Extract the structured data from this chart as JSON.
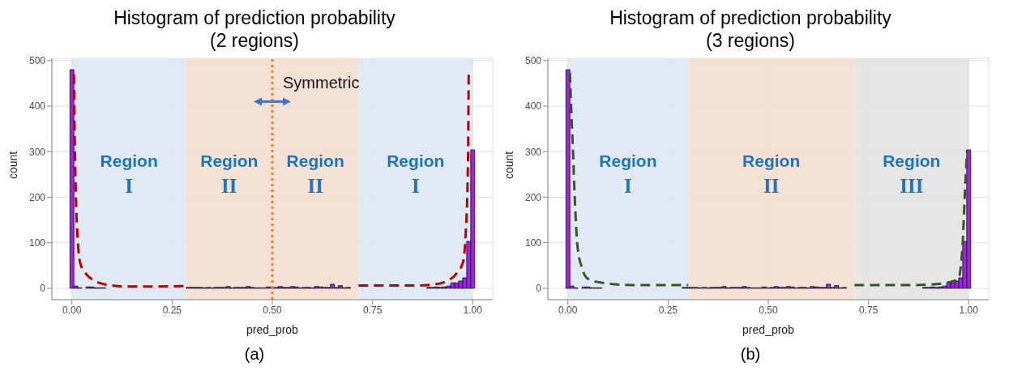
{
  "chart_data": [
    {
      "type": "histogram",
      "title": "Histogram of prediction probability\n(2 regions)",
      "xlabel": "pred_prob",
      "ylabel": "count",
      "bins": [
        -0.005,
        0.005,
        0.015,
        0.025,
        0.035,
        0.045,
        0.055,
        0.065,
        0.075,
        0.085,
        0.095,
        0.105,
        0.115,
        0.125,
        0.135,
        0.145,
        0.155,
        0.165,
        0.175,
        0.185,
        0.195,
        0.205,
        0.215,
        0.225,
        0.235,
        0.245,
        0.255,
        0.265,
        0.275,
        0.285,
        0.295,
        0.305,
        0.315,
        0.325,
        0.335,
        0.345,
        0.355,
        0.365,
        0.375,
        0.385,
        0.395,
        0.405,
        0.415,
        0.425,
        0.435,
        0.445,
        0.455,
        0.465,
        0.475,
        0.485,
        0.495,
        0.505,
        0.515,
        0.525,
        0.535,
        0.545,
        0.555,
        0.565,
        0.575,
        0.585,
        0.595,
        0.605,
        0.615,
        0.625,
        0.635,
        0.645,
        0.655,
        0.665,
        0.675,
        0.685,
        0.695,
        0.705,
        0.715,
        0.725,
        0.735,
        0.745,
        0.755,
        0.765,
        0.775,
        0.785,
        0.795,
        0.805,
        0.815,
        0.825,
        0.835,
        0.845,
        0.855,
        0.865,
        0.875,
        0.885,
        0.895,
        0.905,
        0.915,
        0.925,
        0.935,
        0.945,
        0.955,
        0.965,
        0.975,
        0.985,
        0.995,
        1.005
      ],
      "series": [
        {
          "color": "#a020f0",
          "values": [
            480,
            5,
            1,
            0,
            3,
            3,
            1,
            1,
            1,
            0,
            0,
            0,
            0,
            0,
            0,
            0,
            0,
            0,
            0,
            0,
            0,
            0,
            0,
            0,
            0,
            0,
            0,
            0,
            0,
            2,
            2,
            2,
            2,
            1,
            2,
            1,
            2,
            2,
            2,
            4,
            1,
            2,
            2,
            2,
            4,
            2,
            1,
            1,
            1,
            3,
            1,
            2,
            4,
            2,
            2,
            4,
            3,
            1,
            2,
            2,
            1,
            4,
            3,
            2,
            2,
            9,
            2,
            6,
            1,
            2,
            0,
            0,
            0,
            0,
            0,
            0,
            0,
            0,
            0,
            0,
            0,
            0,
            0,
            0,
            0,
            0,
            0,
            0,
            0,
            2,
            2,
            3,
            2,
            3,
            5,
            12,
            12,
            16,
            23,
            103,
            304
          ]
        },
        {
          "type": "line",
          "color": "#c00000",
          "line_style": "dashed",
          "x": [
            0.005,
            0.007,
            0.01,
            0.015,
            0.02,
            0.03,
            0.04,
            0.06,
            0.08,
            0.1,
            0.125,
            0.2,
            0.285,
            0.5,
            0.715,
            0.85,
            0.9,
            0.933,
            0.96,
            0.976,
            0.982,
            0.988,
            0.99
          ],
          "values": [
            470,
            330,
            200,
            100,
            58,
            38,
            27,
            15,
            9,
            6,
            4,
            4,
            5,
            null,
            6,
            6,
            8,
            15,
            33,
            58,
            112,
            264,
            471
          ]
        }
      ],
      "xlim": [
        -0.05,
        1.05
      ],
      "xticks": [
        {
          "value": 0,
          "label": "0.00"
        },
        {
          "value": 0.25,
          "label": "0.25"
        },
        {
          "value": 0.5,
          "label": "0.50"
        },
        {
          "value": 0.75,
          "label": "0.75"
        },
        {
          "value": 1,
          "label": "1.00"
        }
      ],
      "ylim": [
        -25,
        505
      ],
      "yticks": [
        0,
        100,
        200,
        300,
        400,
        500
      ],
      "grid": true,
      "bands": [
        {
          "axis": "x",
          "from": 0,
          "to": 0.285,
          "label": "Region I",
          "color": "#dce6f2"
        },
        {
          "axis": "x",
          "from": 0.285,
          "to": 0.5,
          "label": "Region II",
          "color": "#f2dcce"
        },
        {
          "axis": "x",
          "from": 0.5,
          "to": 0.715,
          "label": "Region II",
          "color": "#f2dcce"
        },
        {
          "axis": "x",
          "from": 0.715,
          "to": 1,
          "label": "Region I",
          "color": "#dce6f2"
        }
      ],
      "ref_lines": [
        {
          "axis": "x",
          "value": 0.5,
          "color": "#ed7d31",
          "line_style": "dotted"
        }
      ],
      "annotations": [
        {
          "text": "Symmetric",
          "x": 0.5,
          "y": 410
        },
        "(a)"
      ]
    },
    {
      "type": "histogram",
      "title": "Histogram of prediction probability\n(3 regions)",
      "xlabel": "pred_prob",
      "ylabel": "count",
      "bins": [
        -0.005,
        0.005,
        0.015,
        0.025,
        0.035,
        0.045,
        0.055,
        0.065,
        0.075,
        0.085,
        0.095,
        0.105,
        0.115,
        0.125,
        0.135,
        0.145,
        0.155,
        0.165,
        0.175,
        0.185,
        0.195,
        0.205,
        0.215,
        0.225,
        0.235,
        0.245,
        0.255,
        0.265,
        0.275,
        0.285,
        0.295,
        0.305,
        0.315,
        0.325,
        0.335,
        0.345,
        0.355,
        0.365,
        0.375,
        0.385,
        0.395,
        0.405,
        0.415,
        0.425,
        0.435,
        0.445,
        0.455,
        0.465,
        0.475,
        0.485,
        0.495,
        0.505,
        0.515,
        0.525,
        0.535,
        0.545,
        0.555,
        0.565,
        0.575,
        0.585,
        0.595,
        0.605,
        0.615,
        0.625,
        0.635,
        0.645,
        0.655,
        0.665,
        0.675,
        0.685,
        0.695,
        0.705,
        0.715,
        0.725,
        0.735,
        0.745,
        0.755,
        0.765,
        0.775,
        0.785,
        0.795,
        0.805,
        0.815,
        0.825,
        0.835,
        0.845,
        0.855,
        0.865,
        0.875,
        0.885,
        0.895,
        0.905,
        0.915,
        0.925,
        0.935,
        0.945,
        0.955,
        0.965,
        0.975,
        0.985,
        0.995,
        1.005
      ],
      "series": [
        {
          "color": "#a020f0",
          "values": [
            480,
            5,
            1,
            0,
            3,
            3,
            1,
            1,
            1,
            0,
            0,
            0,
            0,
            0,
            0,
            0,
            0,
            0,
            0,
            0,
            0,
            0,
            0,
            0,
            0,
            0,
            0,
            0,
            0,
            2,
            2,
            2,
            2,
            1,
            2,
            1,
            2,
            2,
            2,
            4,
            1,
            2,
            2,
            2,
            4,
            2,
            1,
            1,
            1,
            3,
            1,
            2,
            4,
            2,
            2,
            4,
            3,
            1,
            2,
            2,
            1,
            4,
            3,
            2,
            2,
            9,
            2,
            6,
            1,
            2,
            0,
            0,
            0,
            0,
            0,
            0,
            0,
            0,
            0,
            0,
            0,
            0,
            0,
            0,
            0,
            0,
            0,
            0,
            0,
            2,
            2,
            3,
            2,
            3,
            5,
            12,
            12,
            16,
            23,
            103,
            304
          ]
        },
        {
          "type": "line",
          "color": "#375623",
          "line_style": "dashed",
          "x": [
            0.005,
            0.008,
            0.012,
            0.018,
            0.024,
            0.035,
            0.05,
            0.087,
            0.16,
            0.3,
            0.5,
            0.715,
            0.85,
            0.9,
            0.944,
            0.974,
            0.985,
            0.99,
            0.996
          ],
          "values": [
            473,
            400,
            316,
            180,
            92,
            45,
            21,
            12,
            7,
            7,
            null,
            7,
            7,
            8,
            12,
            21,
            98,
            200,
            303
          ]
        }
      ],
      "xlim": [
        -0.05,
        1.05
      ],
      "xticks": [
        {
          "value": 0,
          "label": "0.00"
        },
        {
          "value": 0.25,
          "label": "0.25"
        },
        {
          "value": 0.5,
          "label": "0.50"
        },
        {
          "value": 0.75,
          "label": "0.75"
        },
        {
          "value": 1,
          "label": "1.00"
        }
      ],
      "ylim": [
        -25,
        505
      ],
      "yticks": [
        0,
        100,
        200,
        300,
        400,
        500
      ],
      "grid": true,
      "bands": [
        {
          "axis": "x",
          "from": 0,
          "to": 0.3,
          "label": "Region I",
          "color": "#dce6f2"
        },
        {
          "axis": "x",
          "from": 0.3,
          "to": 0.715,
          "label": "Region II",
          "color": "#f2dcce"
        },
        {
          "axis": "x",
          "from": 0.715,
          "to": 1,
          "label": "Region III",
          "color": "#e0e0e0"
        }
      ],
      "annotations": [
        "(b)"
      ]
    }
  ]
}
